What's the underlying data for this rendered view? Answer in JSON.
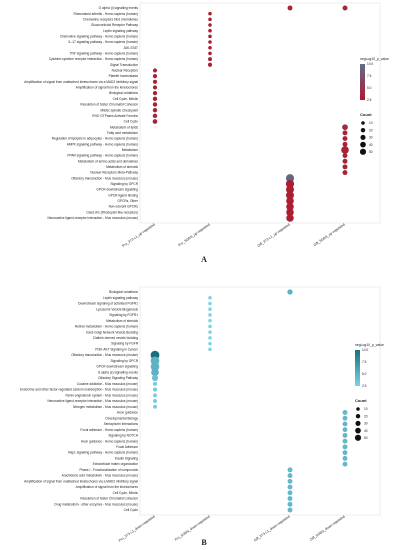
{
  "chart_data": [
    {
      "type": "scatter",
      "panel": "A",
      "categories": [
        "Pro_3T3-L1_up-regulated",
        "Pro_SGBS_up-regulated",
        "Diff_3T3-L1_up-regulated",
        "Diff_SGBS_up-regulated"
      ],
      "terms": [
        "G alpha (i) signalling events",
        "Rheumatoid arthritis - Homo sapiens (human)",
        "Chemokine receptors bind chemokines",
        "Glucocorticoid Receptor Pathway",
        "Leptin signaling pathway",
        "Chemokine signaling pathway - Homo sapiens (human)",
        "IL-17 signaling pathway - Homo sapiens (human)",
        "JAK-STAT",
        "TNF signaling pathway - Homo sapiens (human)",
        "Cytokine-cytokine receptor interaction - Homo sapiens (human)",
        "Signal Transduction",
        "Nuclear Receptors",
        "Platelet homeostasis",
        "Amplification of signal from unattached kinetochores via a MAD2 inhibitory signal",
        "Amplification of signal from the kinetochores",
        "Biological oxidations",
        "Cell Cycle, Mitotic",
        "Resolution of Sister Chromatid Cohesion",
        "Mitotic Spindle Checkpoint",
        "RHO GTPases Activate Formins",
        "Cell Cycle",
        "Metabolism of lipids",
        "Fatty acid metabolism",
        "Regulation of lipolysis in adipocytes - Homo sapiens (human)",
        "AMPK signaling pathway - Homo sapiens (human)",
        "Metabolism",
        "PPAR signaling pathway - Homo sapiens (human)",
        "Metabolism of amino acids and derivatives",
        "Metabolism of steroids",
        "Nuclear Receptors Meta-Pathway",
        "Olfactory transduction - Mus musculus (mouse)",
        "Signaling by GPCR",
        "GPCR downstream signalling",
        "GPCR ligand binding",
        "GPCRs, Other",
        "Non-odorant GPCRs",
        "Class A/1 (Rhodopsin-like receptors)",
        "Neuroactive ligand-receptor interaction - Mus musculus (mouse)"
      ],
      "points": [
        {
          "term": 0,
          "cat": 2,
          "count": 8,
          "p": 3.5
        },
        {
          "term": 0,
          "cat": 3,
          "count": 8,
          "p": 3.5
        },
        {
          "term": 1,
          "cat": 1,
          "count": 3,
          "p": 3.0
        },
        {
          "term": 2,
          "cat": 1,
          "count": 3,
          "p": 3.0
        },
        {
          "term": 3,
          "cat": 1,
          "count": 3,
          "p": 3.0
        },
        {
          "term": 4,
          "cat": 1,
          "count": 3,
          "p": 3.0
        },
        {
          "term": 5,
          "cat": 1,
          "count": 3,
          "p": 3.0
        },
        {
          "term": 6,
          "cat": 1,
          "count": 3,
          "p": 3.0
        },
        {
          "term": 7,
          "cat": 1,
          "count": 3,
          "p": 3.0
        },
        {
          "term": 8,
          "cat": 1,
          "count": 3,
          "p": 3.0
        },
        {
          "term": 9,
          "cat": 1,
          "count": 4,
          "p": 3.2
        },
        {
          "term": 10,
          "cat": 1,
          "count": 5,
          "p": 3.5
        },
        {
          "term": 11,
          "cat": 0,
          "count": 5,
          "p": 3.5
        },
        {
          "term": 12,
          "cat": 0,
          "count": 5,
          "p": 3.5
        },
        {
          "term": 13,
          "cat": 0,
          "count": 5,
          "p": 3.5
        },
        {
          "term": 14,
          "cat": 0,
          "count": 5,
          "p": 3.5
        },
        {
          "term": 15,
          "cat": 0,
          "count": 5,
          "p": 3.5
        },
        {
          "term": 16,
          "cat": 0,
          "count": 6,
          "p": 3.5
        },
        {
          "term": 17,
          "cat": 0,
          "count": 6,
          "p": 3.5
        },
        {
          "term": 18,
          "cat": 0,
          "count": 6,
          "p": 3.5
        },
        {
          "term": 19,
          "cat": 0,
          "count": 6,
          "p": 3.5
        },
        {
          "term": 20,
          "cat": 0,
          "count": 7,
          "p": 3.5
        },
        {
          "term": 21,
          "cat": 3,
          "count": 12,
          "p": 4.0
        },
        {
          "term": 22,
          "cat": 3,
          "count": 8,
          "p": 3.5
        },
        {
          "term": 23,
          "cat": 3,
          "count": 8,
          "p": 3.5
        },
        {
          "term": 24,
          "cat": 3,
          "count": 8,
          "p": 3.5
        },
        {
          "term": 25,
          "cat": 3,
          "count": 25,
          "p": 3.5
        },
        {
          "term": 26,
          "cat": 3,
          "count": 8,
          "p": 3.5
        },
        {
          "term": 27,
          "cat": 3,
          "count": 8,
          "p": 3.5
        },
        {
          "term": 28,
          "cat": 3,
          "count": 8,
          "p": 3.5
        },
        {
          "term": 29,
          "cat": 3,
          "count": 8,
          "p": 3.5
        },
        {
          "term": 30,
          "cat": 2,
          "count": 30,
          "p": 9.5
        },
        {
          "term": 31,
          "cat": 2,
          "count": 30,
          "p": 3.0
        },
        {
          "term": 32,
          "cat": 2,
          "count": 28,
          "p": 3.0
        },
        {
          "term": 33,
          "cat": 2,
          "count": 28,
          "p": 3.0
        },
        {
          "term": 34,
          "cat": 2,
          "count": 25,
          "p": 3.0
        },
        {
          "term": 35,
          "cat": 2,
          "count": 25,
          "p": 3.0
        },
        {
          "term": 36,
          "cat": 2,
          "count": 24,
          "p": 3.0
        },
        {
          "term": 37,
          "cat": 2,
          "count": 24,
          "p": 3.0
        }
      ],
      "color_legend": {
        "title": "negLog10_p_value",
        "ticks": [
          10.0,
          7.5,
          5.0,
          2.5
        ],
        "low": "#b2182b",
        "high": "#5d6d8a"
      },
      "size_legend": {
        "title": "Count",
        "ticks": [
          10,
          20,
          30,
          40,
          50
        ]
      }
    },
    {
      "type": "scatter",
      "panel": "B",
      "categories": [
        "Pro_3T3-L1_down-regulated",
        "Pro_SGBS_down-regulated",
        "Diff_3T3-L1_down-regulated",
        "Diff_SGBS_down-regulated"
      ],
      "terms": [
        "Biological oxidations",
        "Leptin signaling pathway",
        "Downstream signaling of activated FGFR1",
        "Lysosome Vesicle Biogenesis",
        "Signaling by FGFR1",
        "Metabolism of steroids",
        "Retinol metabolism - Homo sapiens (human)",
        "trans-Golgi Network Vesicle Budding",
        "Clathrin derived vesicle budding",
        "Signaling by FGFR",
        "PI3K-AKT Signaling in Cancer",
        "Olfactory transduction - Mus musculus (mouse)",
        "Signaling by GPCR",
        "GPCR downstream signalling",
        "G alpha (s) signalling events",
        "Olfactory Signaling Pathway",
        "Cocaine addiction - Mus musculus (mouse)",
        "Endocrine and other factor-regulated calcium reabsorption - Mus musculus (mouse)",
        "Renin-angiotensin system - Mus musculus (mouse)",
        "Neuroactive ligand-receptor interaction - Mus musculus (mouse)",
        "Nitrogen metabolism - Mus musculus (mouse)",
        "Axon guidance",
        "Developmental Biology",
        "Semaphorin interactions",
        "Focal adhesion - Homo sapiens (human)",
        "Signaling by NOTCH",
        "Axon guidance - Homo sapiens (human)",
        "Focal Adhesion",
        "Rap1 signaling pathway - Homo sapiens (human)",
        "Insulin Signaling",
        "Extracellular matrix organization",
        "Phase I - Functionalization of compounds",
        "Arachidonic acid metabolism - Mus musculus (mouse)",
        "Amplification of signal from unattached kinetochores via a MAD2 inhibitory signal",
        "Amplification of signal from the kinetochores",
        "Cell Cycle, Mitotic",
        "Resolution of Sister Chromatid Cohesion",
        "Drug metabolism - other enzymes - Mus musculus (mouse)",
        "Cell Cycle"
      ],
      "points": [
        {
          "term": 0,
          "cat": 2,
          "count": 10,
          "p": 5.0
        },
        {
          "term": 1,
          "cat": 1,
          "count": 3,
          "p": 2.5
        },
        {
          "term": 2,
          "cat": 1,
          "count": 3,
          "p": 2.5
        },
        {
          "term": 3,
          "cat": 1,
          "count": 3,
          "p": 2.5
        },
        {
          "term": 4,
          "cat": 1,
          "count": 3,
          "p": 2.5
        },
        {
          "term": 5,
          "cat": 1,
          "count": 3,
          "p": 2.5
        },
        {
          "term": 6,
          "cat": 1,
          "count": 3,
          "p": 2.5
        },
        {
          "term": 7,
          "cat": 1,
          "count": 3,
          "p": 2.5
        },
        {
          "term": 8,
          "cat": 1,
          "count": 3,
          "p": 2.5
        },
        {
          "term": 9,
          "cat": 1,
          "count": 3,
          "p": 2.5
        },
        {
          "term": 10,
          "cat": 1,
          "count": 3,
          "p": 2.5
        },
        {
          "term": 11,
          "cat": 0,
          "count": 35,
          "p": 10.0
        },
        {
          "term": 12,
          "cat": 0,
          "count": 35,
          "p": 5.0
        },
        {
          "term": 13,
          "cat": 0,
          "count": 33,
          "p": 5.0
        },
        {
          "term": 14,
          "cat": 0,
          "count": 25,
          "p": 5.0
        },
        {
          "term": 15,
          "cat": 0,
          "count": 15,
          "p": 4.0
        },
        {
          "term": 16,
          "cat": 0,
          "count": 5,
          "p": 3.0
        },
        {
          "term": 17,
          "cat": 0,
          "count": 5,
          "p": 3.0
        },
        {
          "term": 18,
          "cat": 0,
          "count": 4,
          "p": 3.0
        },
        {
          "term": 19,
          "cat": 0,
          "count": 4,
          "p": 3.0
        },
        {
          "term": 20,
          "cat": 0,
          "count": 4,
          "p": 3.0
        },
        {
          "term": 21,
          "cat": 3,
          "count": 8,
          "p": 4.5
        },
        {
          "term": 22,
          "cat": 3,
          "count": 8,
          "p": 4.5
        },
        {
          "term": 23,
          "cat": 3,
          "count": 8,
          "p": 4.5
        },
        {
          "term": 24,
          "cat": 3,
          "count": 8,
          "p": 4.5
        },
        {
          "term": 25,
          "cat": 3,
          "count": 8,
          "p": 4.5
        },
        {
          "term": 26,
          "cat": 3,
          "count": 8,
          "p": 4.5
        },
        {
          "term": 27,
          "cat": 3,
          "count": 8,
          "p": 4.5
        },
        {
          "term": 28,
          "cat": 3,
          "count": 8,
          "p": 4.5
        },
        {
          "term": 29,
          "cat": 3,
          "count": 8,
          "p": 4.5
        },
        {
          "term": 30,
          "cat": 3,
          "count": 8,
          "p": 4.5
        },
        {
          "term": 31,
          "cat": 2,
          "count": 8,
          "p": 4.5
        },
        {
          "term": 32,
          "cat": 2,
          "count": 8,
          "p": 4.5
        },
        {
          "term": 33,
          "cat": 2,
          "count": 8,
          "p": 4.5
        },
        {
          "term": 34,
          "cat": 2,
          "count": 8,
          "p": 4.5
        },
        {
          "term": 35,
          "cat": 2,
          "count": 8,
          "p": 4.5
        },
        {
          "term": 36,
          "cat": 2,
          "count": 8,
          "p": 4.5
        },
        {
          "term": 37,
          "cat": 2,
          "count": 8,
          "p": 4.5
        },
        {
          "term": 38,
          "cat": 2,
          "count": 8,
          "p": 4.5
        }
      ],
      "color_legend": {
        "title": "negLog10_p_value",
        "ticks": [
          10.0,
          7.5,
          5.0,
          2.5
        ],
        "low": "#7fd3e6",
        "high": "#1a6f7d"
      },
      "size_legend": {
        "title": "Count",
        "ticks": [
          10,
          20,
          30,
          40,
          50
        ]
      }
    }
  ]
}
